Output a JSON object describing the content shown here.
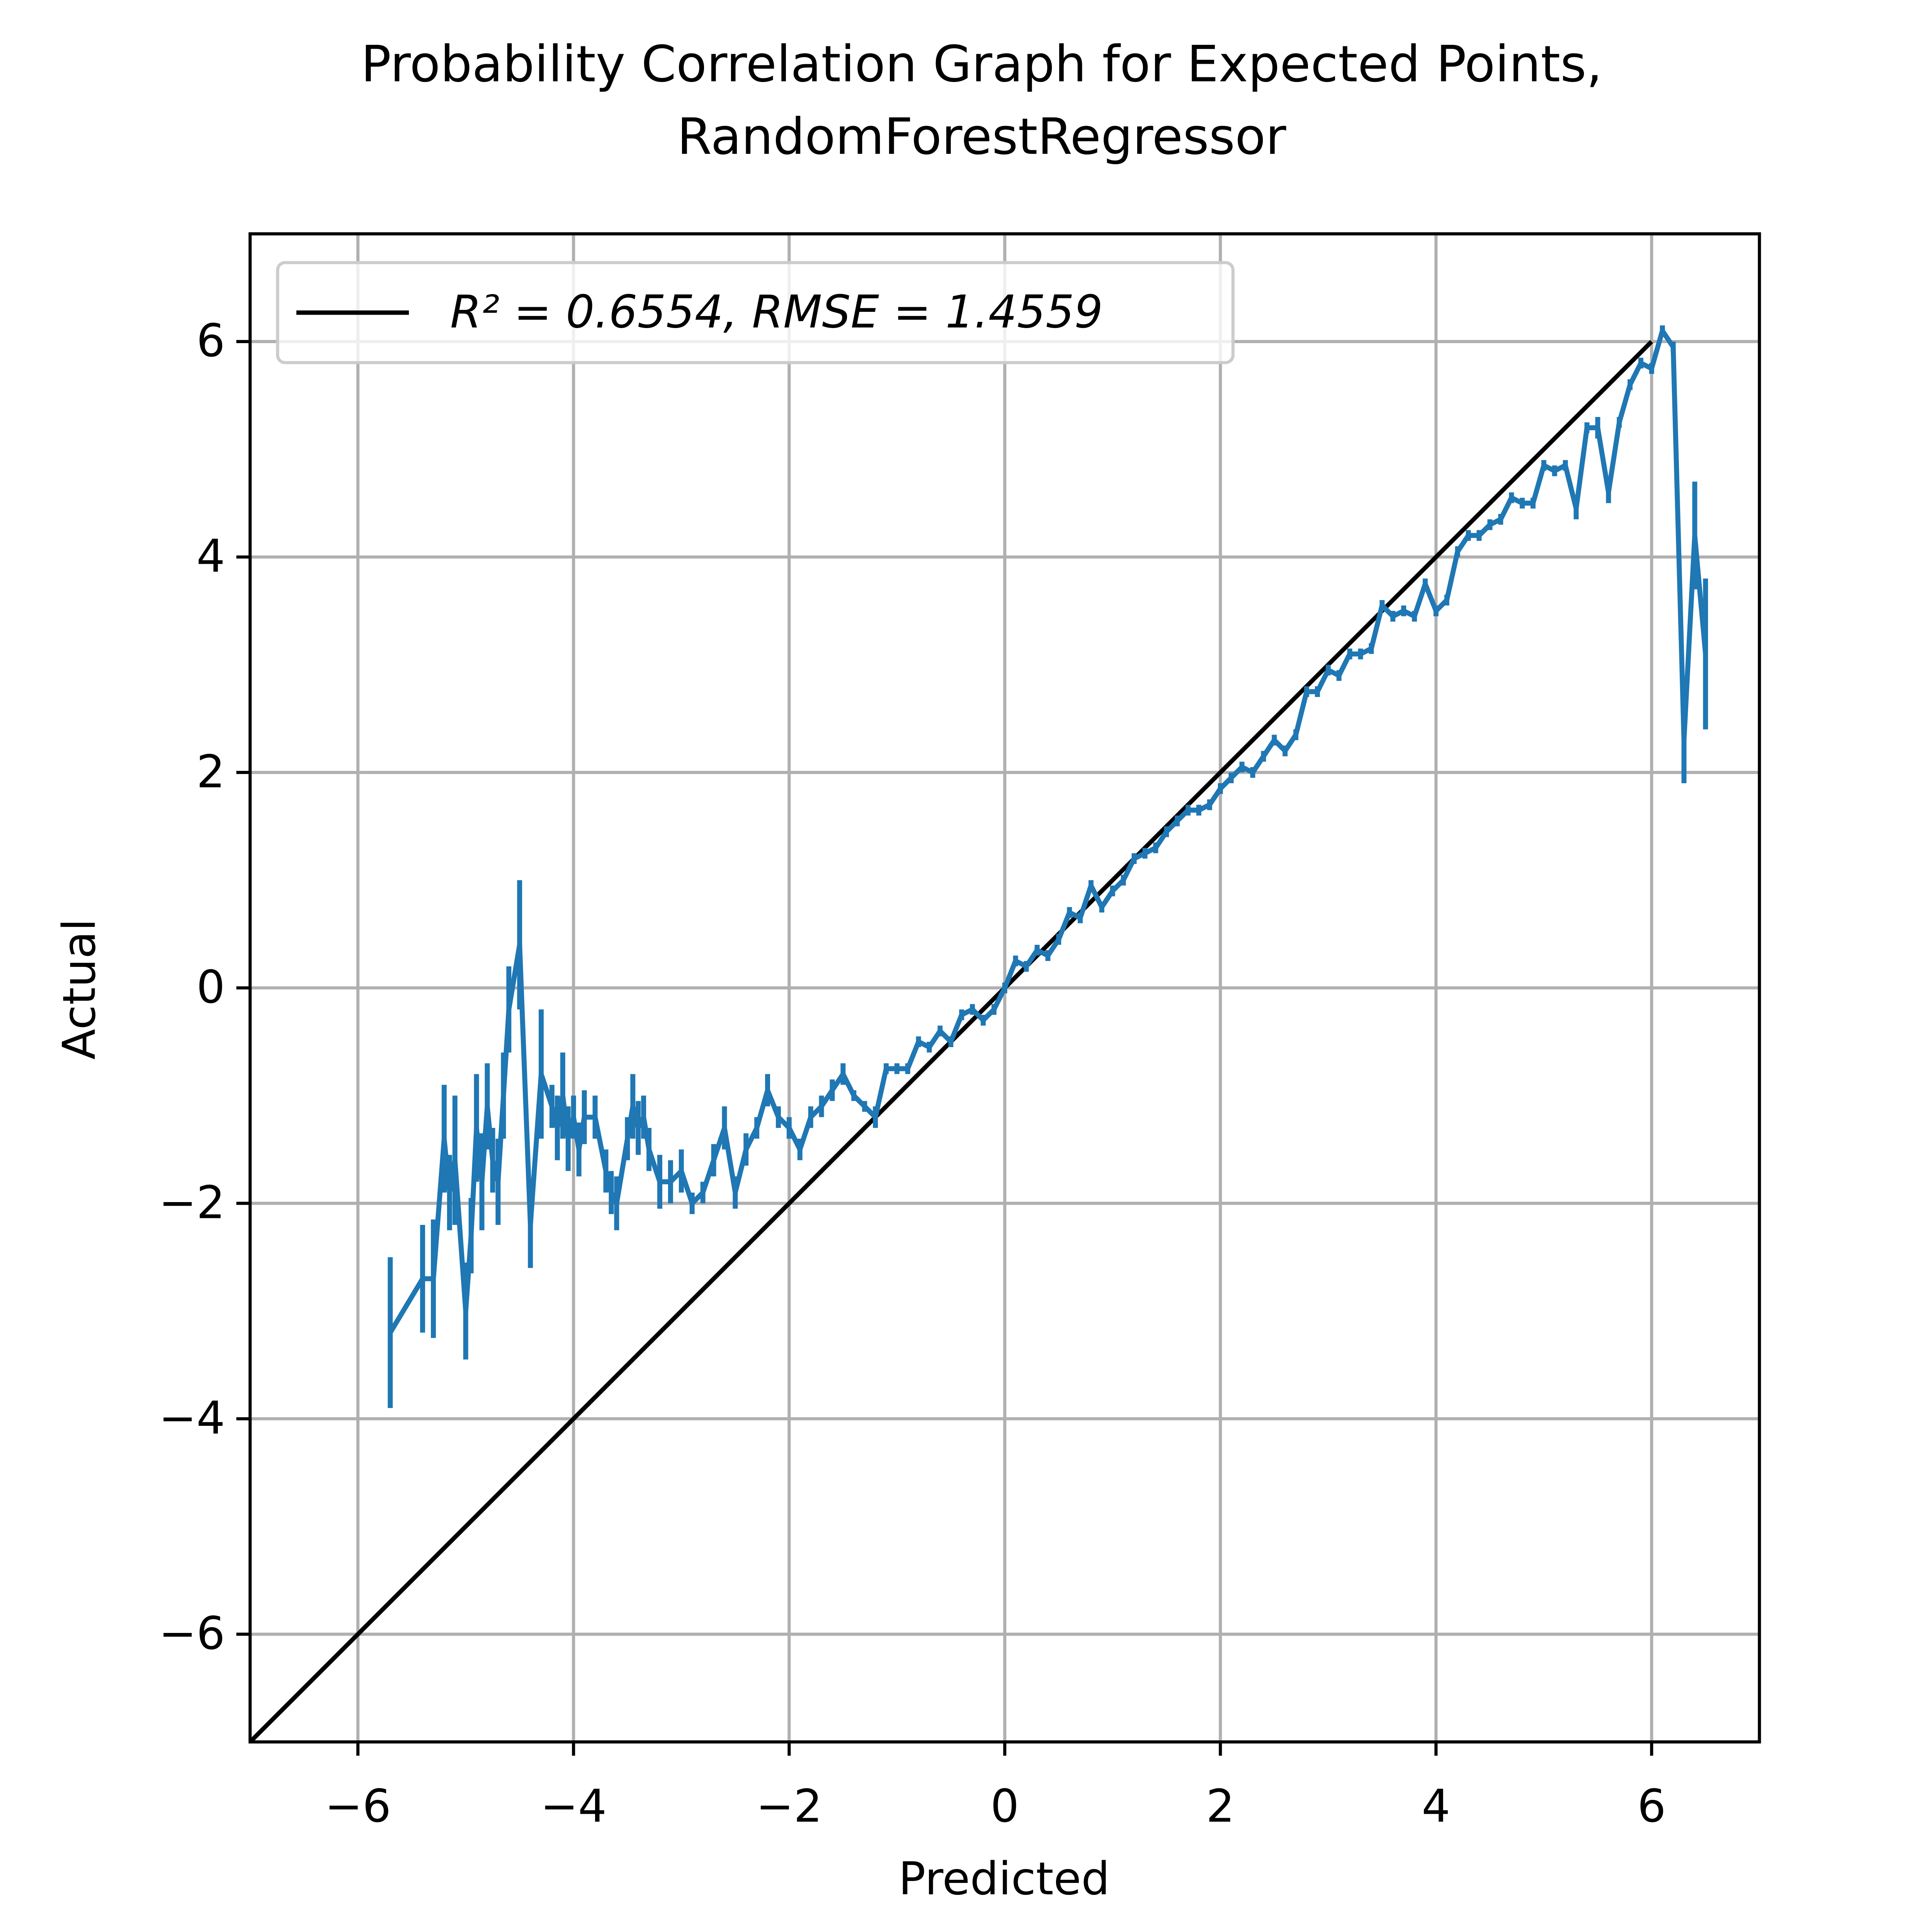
{
  "chart_data": {
    "type": "line",
    "title": [
      "Probability Correlation Graph for Expected Points,",
      "RandomForestRegressor"
    ],
    "x_label": "Predicted",
    "y_label": "Actual",
    "xlim": [
      -7,
      7
    ],
    "ylim": [
      -7,
      7
    ],
    "xticks": [
      {
        "value": -6,
        "label": "−6"
      },
      {
        "value": -4,
        "label": "−4"
      },
      {
        "value": -2,
        "label": "−2"
      },
      0,
      2,
      4,
      6
    ],
    "yticks": [
      {
        "value": -6,
        "label": "−6"
      },
      {
        "value": -4,
        "label": "−4"
      },
      {
        "value": -2,
        "label": "−2"
      },
      0,
      2,
      4,
      6
    ],
    "grid": true,
    "legend": "upper left",
    "series": [
      {
        "name": "R² = 0.6554, RMSE = 1.4559",
        "color": "#000000",
        "x": [
          -7,
          6
        ],
        "values": [
          -7,
          6
        ]
      },
      {
        "color": "#1f77b4",
        "x": [
          -5.7,
          -5.4,
          -5.3,
          -5.2,
          -5.15,
          -5.1,
          -5.0,
          -4.95,
          -4.9,
          -4.85,
          -4.8,
          -4.75,
          -4.7,
          -4.65,
          -4.6,
          -4.5,
          -4.4,
          -4.3,
          -4.2,
          -4.15,
          -4.1,
          -4.05,
          -4.0,
          -3.95,
          -3.9,
          -3.8,
          -3.7,
          -3.65,
          -3.6,
          -3.5,
          -3.45,
          -3.4,
          -3.35,
          -3.3,
          -3.2,
          -3.1,
          -3.0,
          -2.9,
          -2.8,
          -2.7,
          -2.6,
          -2.5,
          -2.4,
          -2.3,
          -2.2,
          -2.1,
          -2.0,
          -1.9,
          -1.8,
          -1.7,
          -1.6,
          -1.5,
          -1.4,
          -1.3,
          -1.2,
          -1.1,
          -1.0,
          -0.9,
          -0.8,
          -0.7,
          -0.6,
          -0.5,
          -0.4,
          -0.3,
          -0.2,
          -0.1,
          0,
          0.1,
          0.2,
          0.3,
          0.4,
          0.5,
          0.6,
          0.7,
          0.8,
          0.9,
          1.0,
          1.1,
          1.2,
          1.3,
          1.4,
          1.5,
          1.6,
          1.7,
          1.8,
          1.9,
          2.0,
          2.1,
          2.2,
          2.3,
          2.4,
          2.5,
          2.6,
          2.7,
          2.8,
          2.9,
          3.0,
          3.1,
          3.2,
          3.3,
          3.4,
          3.5,
          3.6,
          3.7,
          3.8,
          3.9,
          4.0,
          4.1,
          4.2,
          4.3,
          4.4,
          4.5,
          4.6,
          4.7,
          4.8,
          4.9,
          5.0,
          5.1,
          5.2,
          5.3,
          5.4,
          5.5,
          5.6,
          5.7,
          5.8,
          5.9,
          6.0,
          6.1,
          6.2,
          6.3,
          6.4,
          6.5
        ],
        "values": [
          -3.2,
          -2.7,
          -2.7,
          -1.4,
          -1.9,
          -1.6,
          -3.0,
          -2.3,
          -1.3,
          -1.8,
          -1.1,
          -1.6,
          -1.8,
          -1.0,
          -0.2,
          0.4,
          -2.2,
          -0.8,
          -1.1,
          -1.3,
          -1.0,
          -1.4,
          -1.2,
          -1.5,
          -1.2,
          -1.2,
          -1.7,
          -1.9,
          -2.0,
          -1.4,
          -1.1,
          -1.3,
          -1.2,
          -1.5,
          -1.8,
          -1.8,
          -1.7,
          -2.0,
          -1.9,
          -1.6,
          -1.3,
          -1.9,
          -1.5,
          -1.3,
          -0.95,
          -1.2,
          -1.3,
          -1.5,
          -1.2,
          -1.1,
          -0.95,
          -0.8,
          -1.0,
          -1.1,
          -1.2,
          -0.75,
          -0.75,
          -0.75,
          -0.5,
          -0.55,
          -0.4,
          -0.5,
          -0.25,
          -0.2,
          -0.3,
          -0.2,
          0,
          0.25,
          0.2,
          0.35,
          0.3,
          0.45,
          0.7,
          0.65,
          0.95,
          0.75,
          0.9,
          1.0,
          1.2,
          1.25,
          1.3,
          1.45,
          1.55,
          1.65,
          1.65,
          1.7,
          1.85,
          1.95,
          2.05,
          2.0,
          2.15,
          2.3,
          2.2,
          2.35,
          2.75,
          2.75,
          2.95,
          2.9,
          3.1,
          3.1,
          3.15,
          3.55,
          3.45,
          3.5,
          3.45,
          3.75,
          3.5,
          3.6,
          4.05,
          4.2,
          4.2,
          4.3,
          4.35,
          4.55,
          4.5,
          4.5,
          4.85,
          4.8,
          4.85,
          4.45,
          5.2,
          5.2,
          4.6,
          5.25,
          5.6,
          5.8,
          5.75,
          6.1,
          5.95,
          2.3,
          4.2,
          3.1
        ],
        "errors": [
          0.7,
          0.5,
          0.55,
          0.5,
          0.35,
          0.6,
          0.45,
          0.35,
          0.5,
          0.45,
          0.4,
          0.3,
          0.4,
          0.4,
          0.4,
          0.6,
          0.4,
          0.6,
          0.2,
          0.3,
          0.4,
          0.3,
          0.2,
          0.25,
          0.25,
          0.2,
          0.2,
          0.2,
          0.25,
          0.2,
          0.3,
          0.25,
          0.2,
          0.2,
          0.25,
          0.2,
          0.2,
          0.1,
          0.1,
          0.15,
          0.2,
          0.15,
          0.15,
          0.1,
          0.15,
          0.1,
          0.1,
          0.1,
          0.1,
          0.1,
          0.1,
          0.1,
          0.05,
          0.05,
          0.1,
          0.05,
          0.05,
          0.05,
          0.05,
          0.05,
          0.05,
          0.05,
          0.05,
          0.05,
          0.05,
          0.05,
          0.05,
          0.05,
          0.05,
          0.05,
          0.05,
          0.05,
          0.05,
          0.05,
          0.05,
          0.05,
          0.05,
          0.05,
          0.05,
          0.05,
          0.05,
          0.05,
          0.05,
          0.05,
          0.05,
          0.05,
          0.05,
          0.05,
          0.05,
          0.05,
          0.05,
          0.05,
          0.05,
          0.05,
          0.05,
          0.05,
          0.05,
          0.05,
          0.05,
          0.05,
          0.05,
          0.05,
          0.05,
          0.05,
          0.05,
          0.05,
          0.05,
          0.05,
          0.05,
          0.05,
          0.05,
          0.05,
          0.05,
          0.05,
          0.05,
          0.05,
          0.05,
          0.05,
          0.05,
          0.1,
          0.05,
          0.1,
          0.1,
          0.05,
          0.05,
          0.05,
          0.05,
          0.05,
          0.05,
          0.4,
          0.5,
          0.7
        ]
      }
    ]
  }
}
